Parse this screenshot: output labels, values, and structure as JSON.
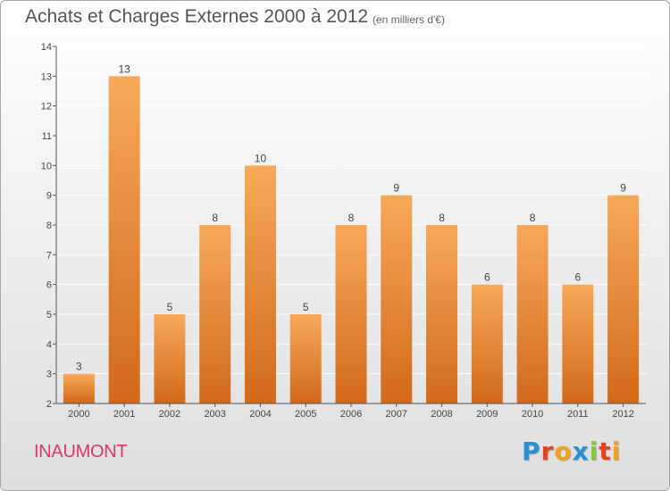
{
  "header": {
    "title": "Achats et Charges Externes 2000 à 2012",
    "subtitle": "(en milliers d'€)"
  },
  "footer": {
    "commune": "INAUMONT",
    "logo_text": "Proxiti",
    "logo_colors": [
      "#2b8fd6",
      "#e8431e",
      "#f4a21d",
      "#2b8fd6",
      "#8bc83f",
      "#e8431e",
      "#f4a21d"
    ]
  },
  "colors": {
    "bar_light": "#f7a95a",
    "bar_dark": "#d2691a",
    "axis": "#555555",
    "grid": "#ffffff",
    "commune": "#d9376f"
  },
  "chart_data": {
    "type": "bar",
    "title": "Achats et Charges Externes 2000 à 2012",
    "subtitle": "(en milliers d'€)",
    "categories": [
      "2000",
      "2001",
      "2002",
      "2003",
      "2004",
      "2005",
      "2006",
      "2007",
      "2008",
      "2009",
      "2010",
      "2011",
      "2012"
    ],
    "values": [
      3,
      13,
      5,
      8,
      10,
      5,
      8,
      9,
      8,
      6,
      8,
      6,
      9
    ],
    "data_labels": [
      "3",
      "13",
      "5",
      "8",
      "10",
      "5",
      "8",
      "9",
      "8",
      "6",
      "8",
      "6",
      "9"
    ],
    "ylim": [
      2,
      14
    ],
    "yticks": [
      2,
      3,
      4,
      5,
      6,
      7,
      8,
      9,
      10,
      11,
      12,
      13,
      14
    ],
    "xlabel": "",
    "ylabel": "",
    "grid": true
  }
}
